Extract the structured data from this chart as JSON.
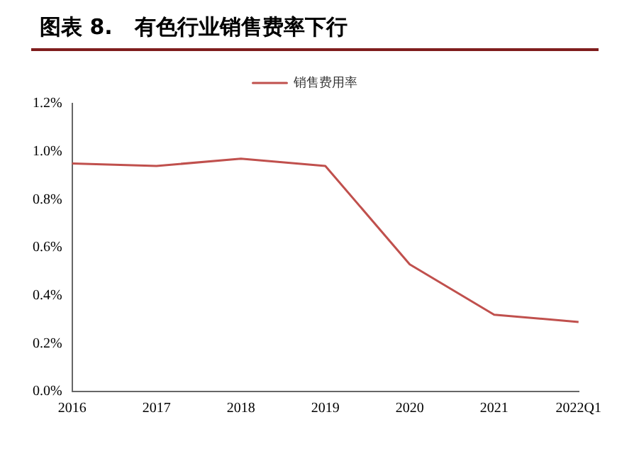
{
  "chart_data": {
    "type": "line",
    "title": "图表 8.   有色行业销售费率下行",
    "categories": [
      "2016",
      "2017",
      "2018",
      "2019",
      "2020",
      "2021",
      "2022Q1"
    ],
    "series": [
      {
        "name": "销售费用率",
        "color": "#c0504d",
        "values": [
          0.95,
          0.94,
          0.97,
          0.94,
          0.53,
          0.32,
          0.29
        ]
      }
    ],
    "ylim": [
      0,
      1.2
    ],
    "yticks": [
      {
        "value": 0,
        "label": "0.0%"
      },
      {
        "value": 0.2,
        "label": "0.2%"
      },
      {
        "value": 0.4,
        "label": "0.4%"
      },
      {
        "value": 0.6,
        "label": "0.6%"
      },
      {
        "value": 0.8,
        "label": "0.8%"
      },
      {
        "value": 1.0,
        "label": "1.0%"
      },
      {
        "value": 1.2,
        "label": "1.2%"
      }
    ],
    "grid": false,
    "legend": "top",
    "marker": "none",
    "line_style": "solid"
  }
}
